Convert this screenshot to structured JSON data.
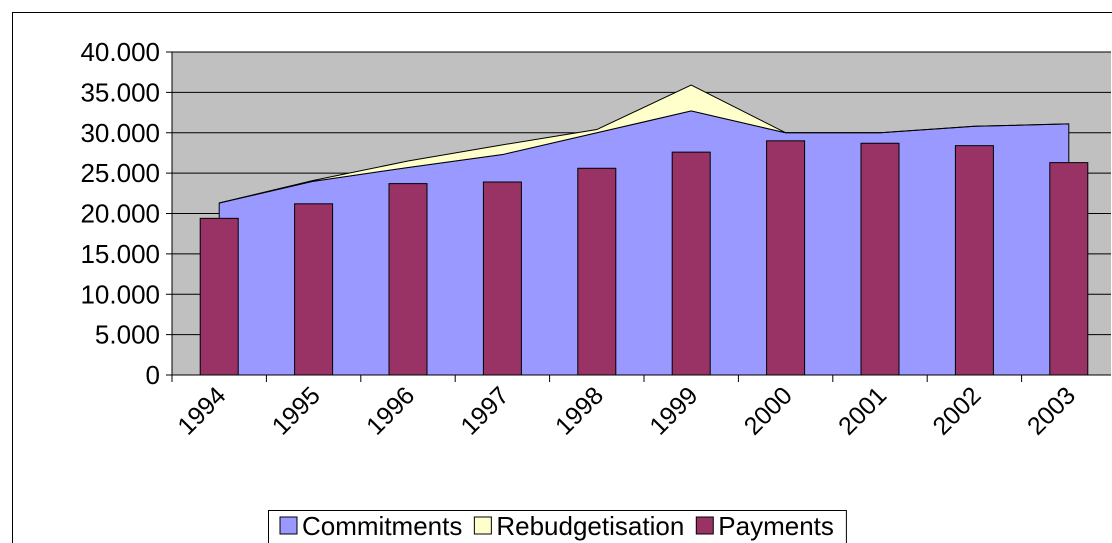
{
  "chart_data": {
    "type": "combo",
    "categories": [
      "1994",
      "1995",
      "1996",
      "1997",
      "1998",
      "1999",
      "2000",
      "2001",
      "2002",
      "2003"
    ],
    "series": [
      {
        "name": "Commitments",
        "type": "area",
        "color": "#9999ff",
        "values": [
          21300,
          24000,
          25700,
          27300,
          30000,
          32700,
          30000,
          30000,
          30800,
          31100
        ]
      },
      {
        "name": "Rebudgetisation",
        "type": "area",
        "color": "#ffffcc",
        "values": [
          0,
          100,
          800,
          1200,
          400,
          3200,
          0,
          0,
          0,
          0
        ]
      },
      {
        "name": "Payments",
        "type": "bar",
        "color": "#993366",
        "values": [
          19400,
          21200,
          23700,
          23900,
          25600,
          27600,
          29000,
          28700,
          28400,
          26300
        ]
      }
    ],
    "stacked_areas": true,
    "ylim": [
      0,
      40000
    ],
    "yticks": [
      0,
      {
        "value": 5000,
        "label": "5.000"
      },
      {
        "value": 10000,
        "label": "10.000"
      },
      {
        "value": 15000,
        "label": "15.000"
      },
      {
        "value": 20000,
        "label": "20.000"
      },
      {
        "value": 25000,
        "label": "25.000"
      },
      {
        "value": 30000,
        "label": "30.000"
      },
      {
        "value": 35000,
        "label": "35.000"
      },
      {
        "value": 40000,
        "label": "40.000"
      }
    ],
    "grid": true,
    "plot_background": "#c0c0c0",
    "legend": "bottom"
  }
}
